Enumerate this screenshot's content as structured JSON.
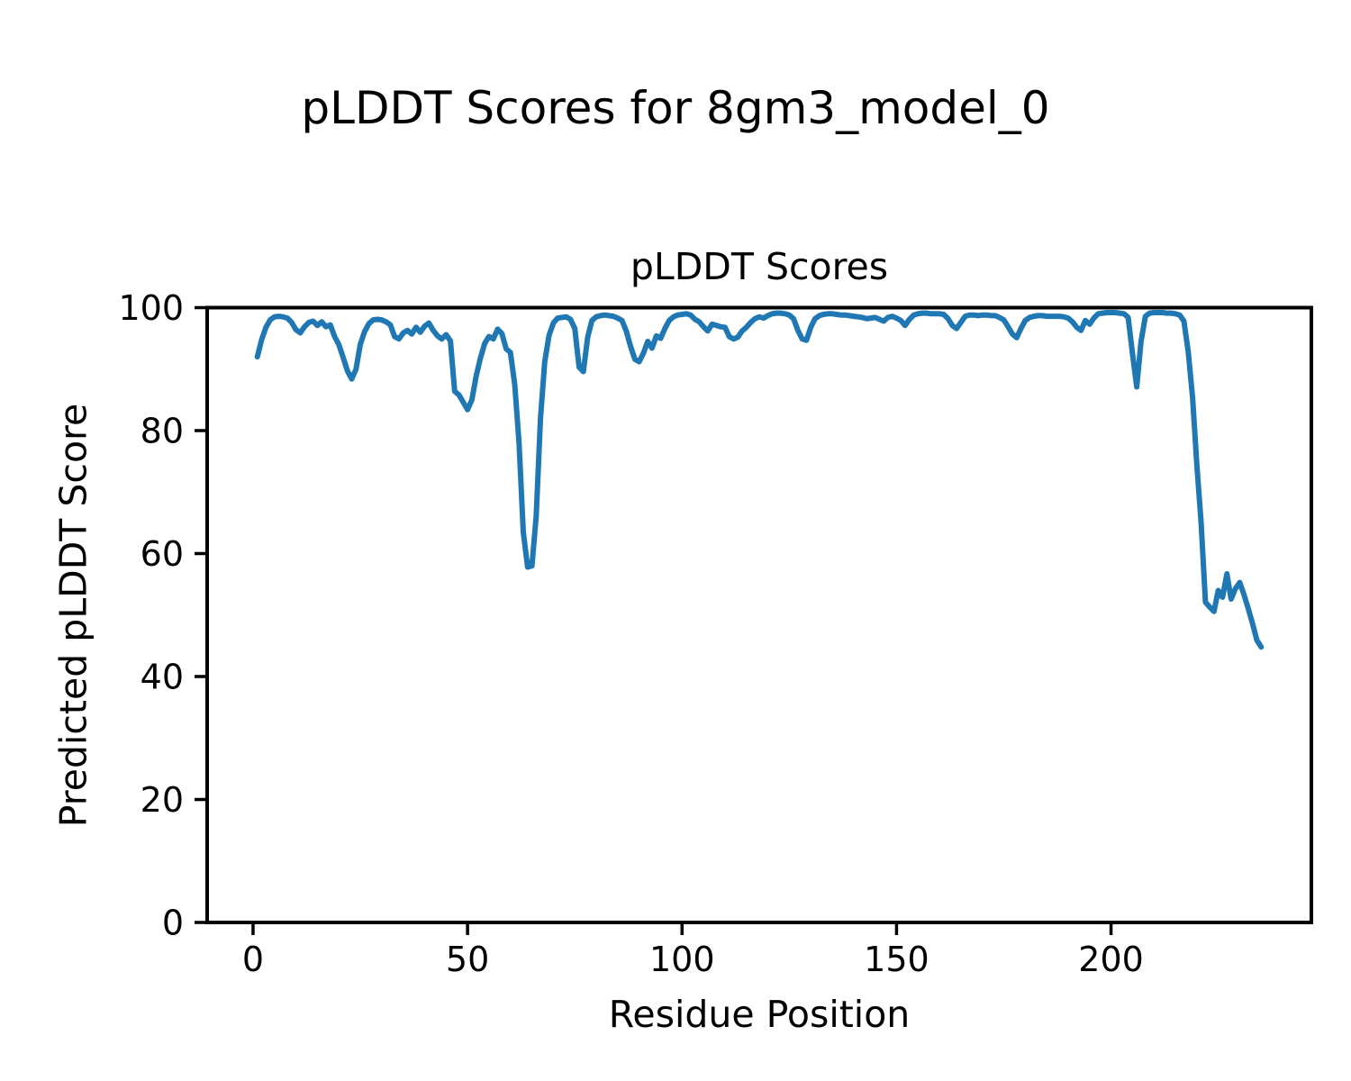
{
  "figure_title": "pLDDT Scores for 8gm3_model_0",
  "chart_data": {
    "type": "line",
    "title": "pLDDT Scores",
    "xlabel": "Residue Position",
    "ylabel": "Predicted pLDDT Score",
    "xlim": [
      -10.7,
      246.7
    ],
    "ylim": [
      0,
      100
    ],
    "xticks": [
      0,
      50,
      100,
      150,
      200
    ],
    "yticks": [
      0,
      20,
      40,
      60,
      80,
      100
    ],
    "grid": false,
    "legend": null,
    "line_color": "#1f77b4",
    "axis_color": "#000000",
    "series": [
      {
        "name": "pLDDT",
        "x_start": 1,
        "x_step": 1,
        "values": [
          92.0,
          94.8,
          96.8,
          98.0,
          98.5,
          98.6,
          98.5,
          98.3,
          97.6,
          96.4,
          95.9,
          96.9,
          97.6,
          97.8,
          97.1,
          97.7,
          96.9,
          97.2,
          95.3,
          94.0,
          91.9,
          89.7,
          88.4,
          90.0,
          94.0,
          96.1,
          97.4,
          98.0,
          98.1,
          98.0,
          97.7,
          97.2,
          95.3,
          94.9,
          95.9,
          96.3,
          95.7,
          96.8,
          96.0,
          97.0,
          97.5,
          96.3,
          95.4,
          94.9,
          95.6,
          94.6,
          86.4,
          85.8,
          84.6,
          83.4,
          85.0,
          88.8,
          91.8,
          94.2,
          95.3,
          94.9,
          96.5,
          95.8,
          93.3,
          92.7,
          87.5,
          78.0,
          63.5,
          57.8,
          58.0,
          66.0,
          82.0,
          91.2,
          95.5,
          97.5,
          98.3,
          98.4,
          98.5,
          98.1,
          96.6,
          90.3,
          89.6,
          95.2,
          97.9,
          98.5,
          98.7,
          98.8,
          98.7,
          98.6,
          98.3,
          97.9,
          96.2,
          93.7,
          91.6,
          91.2,
          92.6,
          94.5,
          93.4,
          95.4,
          95.0,
          96.6,
          97.9,
          98.5,
          98.8,
          98.9,
          99.0,
          98.8,
          98.1,
          97.7,
          96.9,
          96.2,
          97.3,
          97.1,
          96.9,
          96.8,
          95.3,
          94.9,
          95.2,
          96.2,
          96.8,
          97.6,
          98.2,
          98.5,
          98.3,
          98.7,
          99.0,
          99.1,
          99.1,
          99.0,
          98.8,
          98.2,
          96.3,
          94.9,
          94.7,
          96.8,
          98.2,
          98.7,
          98.9,
          99.0,
          99.0,
          98.9,
          98.8,
          98.8,
          98.7,
          98.6,
          98.5,
          98.4,
          98.2,
          98.3,
          98.4,
          98.1,
          97.8,
          98.4,
          98.6,
          98.3,
          97.9,
          97.1,
          98.1,
          98.8,
          99.0,
          99.1,
          99.1,
          99.0,
          99.0,
          99.0,
          98.9,
          98.2,
          97.1,
          96.6,
          97.6,
          98.6,
          98.8,
          98.8,
          98.7,
          98.8,
          98.8,
          98.7,
          98.7,
          98.4,
          98.0,
          96.9,
          95.7,
          95.1,
          96.6,
          97.9,
          98.4,
          98.6,
          98.7,
          98.7,
          98.6,
          98.6,
          98.6,
          98.6,
          98.5,
          98.3,
          97.7,
          96.8,
          96.3,
          97.9,
          97.3,
          98.3,
          99.0,
          99.1,
          99.2,
          99.2,
          99.2,
          99.1,
          99.0,
          98.4,
          92.5,
          87.1,
          94.5,
          98.6,
          99.1,
          99.2,
          99.2,
          99.2,
          99.1,
          99.1,
          99.0,
          98.8,
          97.8,
          92.8,
          85.4,
          74.5,
          65.0,
          52.1,
          51.3,
          50.6,
          54.0,
          52.9,
          56.7,
          52.6,
          54.3,
          55.3,
          53.3,
          51.0,
          48.6,
          45.9,
          44.8
        ]
      }
    ]
  }
}
